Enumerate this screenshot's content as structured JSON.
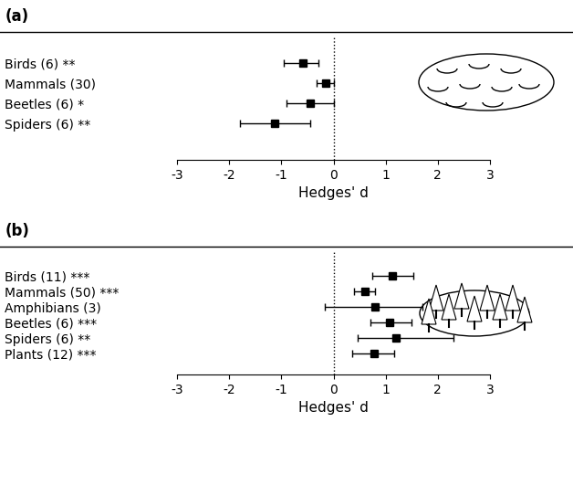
{
  "chart_data": [
    {
      "type": "errorbar",
      "title": "(a)",
      "orientation": "horizontal",
      "color": "#000000",
      "marker": "square",
      "categories": [
        "Birds (6) **",
        "Mammals (30)",
        "Beetles (6) *",
        "Spiders (6) **"
      ],
      "values": [
        -0.58,
        -0.15,
        -0.45,
        -1.12
      ],
      "ci_lower": [
        -0.96,
        -0.33,
        -0.9,
        -1.8
      ],
      "ci_upper": [
        -0.28,
        0.0,
        0.0,
        -0.45
      ],
      "reference_line": 0,
      "xlabel": "Hedges' d",
      "xlim": [
        -3,
        3
      ],
      "xticks": [
        -3,
        -2,
        -1,
        0,
        1,
        2,
        3
      ]
    },
    {
      "type": "errorbar",
      "title": "(b)",
      "orientation": "horizontal",
      "color": "#000000",
      "marker": "square",
      "categories": [
        "Birds (11) ***",
        "Mammals (50) ***",
        "Amphibians (3)",
        "Beetles (6) ***",
        "Spiders (6) **",
        "Plants (12) ***"
      ],
      "values": [
        1.12,
        0.6,
        0.8,
        1.07,
        1.2,
        0.78
      ],
      "ci_lower": [
        0.75,
        0.4,
        -0.17,
        0.7,
        0.47,
        0.35
      ],
      "ci_upper": [
        1.53,
        0.8,
        1.7,
        1.5,
        2.3,
        1.17
      ],
      "reference_line": 0,
      "xlabel": "Hedges' d",
      "xlim": [
        -3,
        3
      ],
      "xticks": [
        -3,
        -2,
        -1,
        0,
        1,
        2,
        3
      ]
    }
  ]
}
